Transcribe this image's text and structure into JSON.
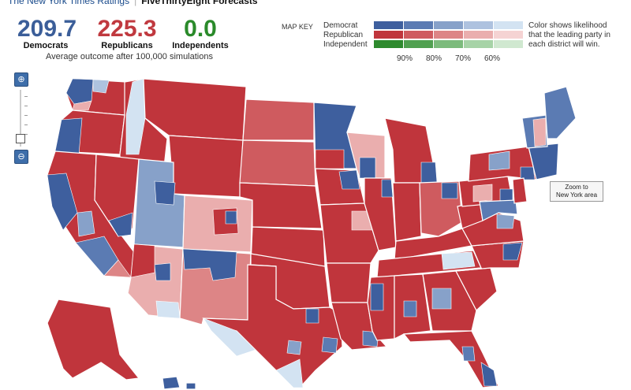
{
  "tabs": {
    "left": "The New York Times Ratings",
    "active": "FiveThirtyEight Forecasts"
  },
  "totals": [
    {
      "value": "209.7",
      "label": "Democrats"
    },
    {
      "value": "225.3",
      "label": "Republicans"
    },
    {
      "value": "0.0",
      "label": "Independents"
    }
  ],
  "average_note": "Average outcome after 100,000 simulations",
  "map_key": {
    "title": "MAP KEY",
    "parties": [
      "Democrat",
      "Republican",
      "Independent"
    ],
    "percent_labels": [
      "90%",
      "80%",
      "70%",
      "60%"
    ],
    "note_lines": [
      "Color shows likelihood",
      "that the leading party in",
      "each district will win."
    ]
  },
  "colors": {
    "dem": [
      "#3e5f9e",
      "#5b7bb3",
      "#87a1c9",
      "#aec2df",
      "#d3e3f2"
    ],
    "rep": [
      "#c0353c",
      "#cf5b5f",
      "#dd8586",
      "#eaaeae",
      "#f5d3d3"
    ],
    "ind": [
      "#2e8a2e",
      "#50a050",
      "#7cbb7c",
      "#a7d3a7",
      "#d0e8d0"
    ]
  },
  "zoom_ny_lines": [
    "Zoom to",
    "New York area"
  ]
}
